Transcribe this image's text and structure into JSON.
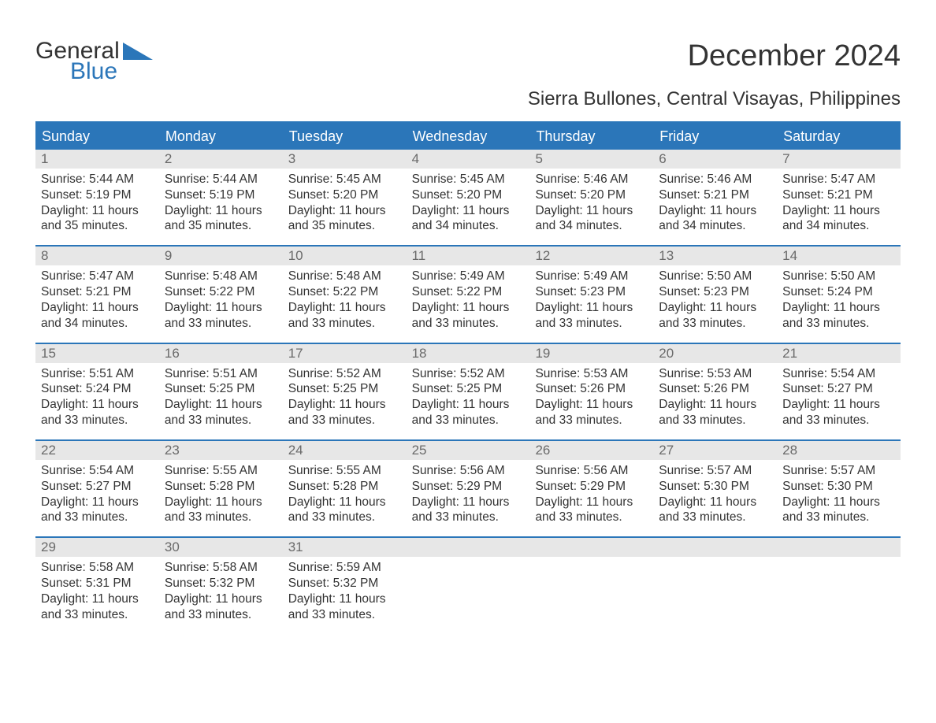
{
  "logo": {
    "general": "General",
    "blue": "Blue",
    "brand_color": "#2b76b9"
  },
  "title": "December 2024",
  "location": "Sierra Bullones, Central Visayas, Philippines",
  "colors": {
    "header_bg": "#2b76b9",
    "header_text": "#ffffff",
    "daynum_bg": "#e7e7e7",
    "daynum_text": "#6a6a6a",
    "body_text": "#333333",
    "page_bg": "#ffffff",
    "border": "#2b76b9"
  },
  "weekdays": [
    "Sunday",
    "Monday",
    "Tuesday",
    "Wednesday",
    "Thursday",
    "Friday",
    "Saturday"
  ],
  "days": [
    {
      "n": "1",
      "sr": "5:44 AM",
      "ss": "5:19 PM",
      "dl": "11 hours and 35 minutes."
    },
    {
      "n": "2",
      "sr": "5:44 AM",
      "ss": "5:19 PM",
      "dl": "11 hours and 35 minutes."
    },
    {
      "n": "3",
      "sr": "5:45 AM",
      "ss": "5:20 PM",
      "dl": "11 hours and 35 minutes."
    },
    {
      "n": "4",
      "sr": "5:45 AM",
      "ss": "5:20 PM",
      "dl": "11 hours and 34 minutes."
    },
    {
      "n": "5",
      "sr": "5:46 AM",
      "ss": "5:20 PM",
      "dl": "11 hours and 34 minutes."
    },
    {
      "n": "6",
      "sr": "5:46 AM",
      "ss": "5:21 PM",
      "dl": "11 hours and 34 minutes."
    },
    {
      "n": "7",
      "sr": "5:47 AM",
      "ss": "5:21 PM",
      "dl": "11 hours and 34 minutes."
    },
    {
      "n": "8",
      "sr": "5:47 AM",
      "ss": "5:21 PM",
      "dl": "11 hours and 34 minutes."
    },
    {
      "n": "9",
      "sr": "5:48 AM",
      "ss": "5:22 PM",
      "dl": "11 hours and 33 minutes."
    },
    {
      "n": "10",
      "sr": "5:48 AM",
      "ss": "5:22 PM",
      "dl": "11 hours and 33 minutes."
    },
    {
      "n": "11",
      "sr": "5:49 AM",
      "ss": "5:22 PM",
      "dl": "11 hours and 33 minutes."
    },
    {
      "n": "12",
      "sr": "5:49 AM",
      "ss": "5:23 PM",
      "dl": "11 hours and 33 minutes."
    },
    {
      "n": "13",
      "sr": "5:50 AM",
      "ss": "5:23 PM",
      "dl": "11 hours and 33 minutes."
    },
    {
      "n": "14",
      "sr": "5:50 AM",
      "ss": "5:24 PM",
      "dl": "11 hours and 33 minutes."
    },
    {
      "n": "15",
      "sr": "5:51 AM",
      "ss": "5:24 PM",
      "dl": "11 hours and 33 minutes."
    },
    {
      "n": "16",
      "sr": "5:51 AM",
      "ss": "5:25 PM",
      "dl": "11 hours and 33 minutes."
    },
    {
      "n": "17",
      "sr": "5:52 AM",
      "ss": "5:25 PM",
      "dl": "11 hours and 33 minutes."
    },
    {
      "n": "18",
      "sr": "5:52 AM",
      "ss": "5:25 PM",
      "dl": "11 hours and 33 minutes."
    },
    {
      "n": "19",
      "sr": "5:53 AM",
      "ss": "5:26 PM",
      "dl": "11 hours and 33 minutes."
    },
    {
      "n": "20",
      "sr": "5:53 AM",
      "ss": "5:26 PM",
      "dl": "11 hours and 33 minutes."
    },
    {
      "n": "21",
      "sr": "5:54 AM",
      "ss": "5:27 PM",
      "dl": "11 hours and 33 minutes."
    },
    {
      "n": "22",
      "sr": "5:54 AM",
      "ss": "5:27 PM",
      "dl": "11 hours and 33 minutes."
    },
    {
      "n": "23",
      "sr": "5:55 AM",
      "ss": "5:28 PM",
      "dl": "11 hours and 33 minutes."
    },
    {
      "n": "24",
      "sr": "5:55 AM",
      "ss": "5:28 PM",
      "dl": "11 hours and 33 minutes."
    },
    {
      "n": "25",
      "sr": "5:56 AM",
      "ss": "5:29 PM",
      "dl": "11 hours and 33 minutes."
    },
    {
      "n": "26",
      "sr": "5:56 AM",
      "ss": "5:29 PM",
      "dl": "11 hours and 33 minutes."
    },
    {
      "n": "27",
      "sr": "5:57 AM",
      "ss": "5:30 PM",
      "dl": "11 hours and 33 minutes."
    },
    {
      "n": "28",
      "sr": "5:57 AM",
      "ss": "5:30 PM",
      "dl": "11 hours and 33 minutes."
    },
    {
      "n": "29",
      "sr": "5:58 AM",
      "ss": "5:31 PM",
      "dl": "11 hours and 33 minutes."
    },
    {
      "n": "30",
      "sr": "5:58 AM",
      "ss": "5:32 PM",
      "dl": "11 hours and 33 minutes."
    },
    {
      "n": "31",
      "sr": "5:59 AM",
      "ss": "5:32 PM",
      "dl": "11 hours and 33 minutes."
    }
  ],
  "labels": {
    "sunrise": "Sunrise:",
    "sunset": "Sunset:",
    "daylight": "Daylight:"
  },
  "layout": {
    "start_offset": 0,
    "total_cells": 35
  }
}
